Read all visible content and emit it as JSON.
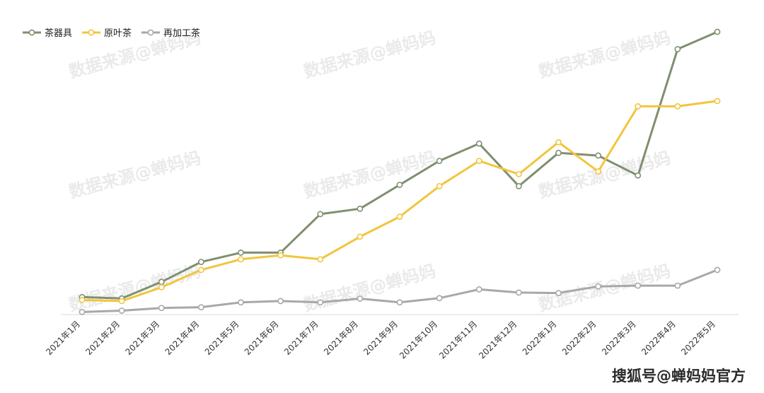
{
  "chart_data": {
    "type": "line",
    "categories": [
      "2021年1月",
      "2021年2月",
      "2021年3月",
      "2021年4月",
      "2021年5月",
      "2021年6月",
      "2021年7月",
      "2021年8月",
      "2021年9月",
      "2021年10月",
      "2021年11月",
      "2021年12月",
      "2022年1月",
      "2022年2月",
      "2022年3月",
      "2022年4月",
      "2022年5月"
    ],
    "series": [
      {
        "name": "茶器具",
        "color": "#7f8f70",
        "values": [
          6.3,
          5.8,
          12.0,
          19.5,
          23.0,
          23.0,
          37.5,
          39.5,
          48.5,
          57.5,
          64.0,
          48.0,
          60.5,
          59.5,
          52.0,
          99.5,
          106.0
        ]
      },
      {
        "name": "原叶茶",
        "color": "#f2c53d",
        "values": [
          5.2,
          4.8,
          10.0,
          16.5,
          20.5,
          22.0,
          20.5,
          29.0,
          36.5,
          48.0,
          57.5,
          52.5,
          64.5,
          53.5,
          78.0,
          78.0,
          80.0
        ]
      },
      {
        "name": "再加工茶",
        "color": "#a8a8a8",
        "values": [
          0.7,
          1.2,
          2.2,
          2.5,
          4.3,
          4.8,
          4.3,
          5.7,
          4.3,
          5.9,
          9.2,
          8.0,
          7.8,
          10.3,
          10.6,
          10.6,
          16.5
        ]
      }
    ],
    "ylim": [
      0,
      110
    ],
    "grid": false,
    "legend_position": "top-left",
    "title": "",
    "xlabel": "",
    "ylabel": ""
  },
  "watermark": {
    "repeated_text": "数据来源@蝉妈妈",
    "corner_text": "搜狐号@蝉妈妈官方"
  }
}
